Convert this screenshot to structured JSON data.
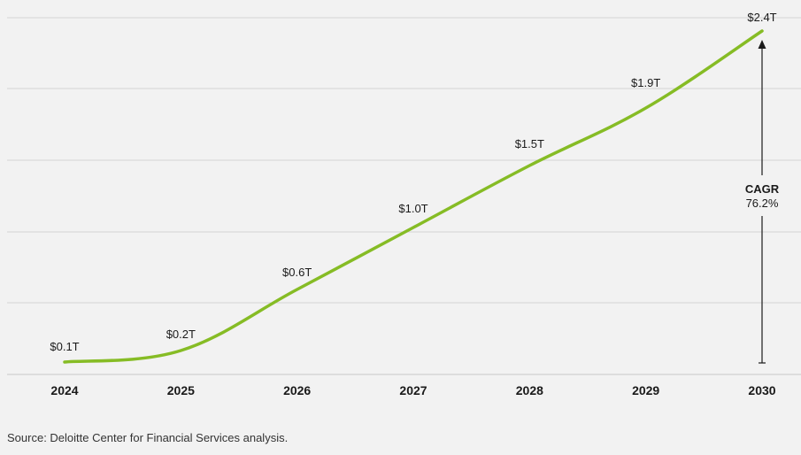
{
  "chart_data": {
    "type": "line",
    "title": "",
    "xlabel": "",
    "ylabel": "",
    "categories": [
      "2024",
      "2025",
      "2026",
      "2027",
      "2028",
      "2029",
      "2030"
    ],
    "values": [
      0.1,
      0.2,
      0.6,
      1.0,
      1.5,
      1.9,
      2.4
    ],
    "data_labels": [
      "$0.1T",
      "$0.2T",
      "$0.6T",
      "$1.0T",
      "$1.5T",
      "$1.9T",
      "$2.4T"
    ],
    "ylim": [
      0,
      2.5
    ],
    "y_gridlines": [
      0.5,
      1.0,
      1.5,
      2.0
    ],
    "series_color": "#86bc25",
    "annotation": {
      "title": "CAGR",
      "value": "76.2%"
    }
  },
  "source": "Source: Deloitte Center for Financial Services analysis."
}
